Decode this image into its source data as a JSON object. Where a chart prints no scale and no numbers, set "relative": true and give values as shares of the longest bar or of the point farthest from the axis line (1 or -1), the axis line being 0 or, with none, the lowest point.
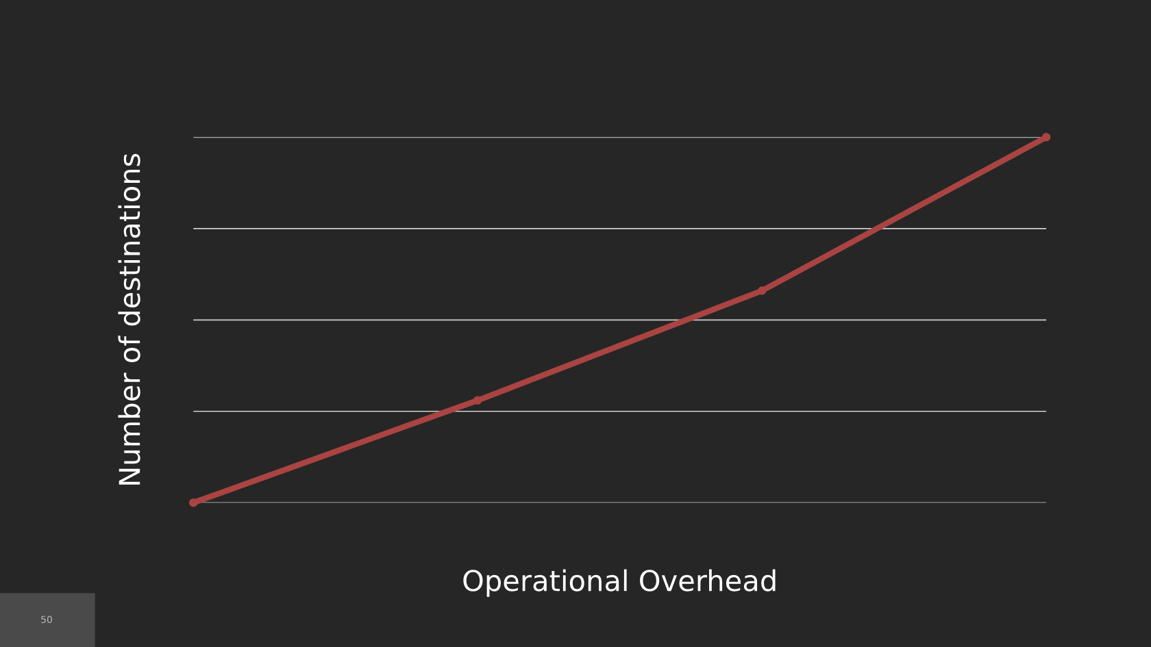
{
  "chart_data": {
    "type": "line",
    "relative": true,
    "xlabel": "Operational Overhead",
    "ylabel": "Number of destinations",
    "categories": [
      null,
      null,
      null,
      null
    ],
    "series": [
      {
        "color": "#a94442",
        "values": [
          0,
          0.28,
          0.58,
          1
        ]
      }
    ],
    "grid": "y",
    "legend": false,
    "marker": "circle",
    "line_style": "solid",
    "tick_labels": false,
    "annotations": [
      "50"
    ]
  }
}
